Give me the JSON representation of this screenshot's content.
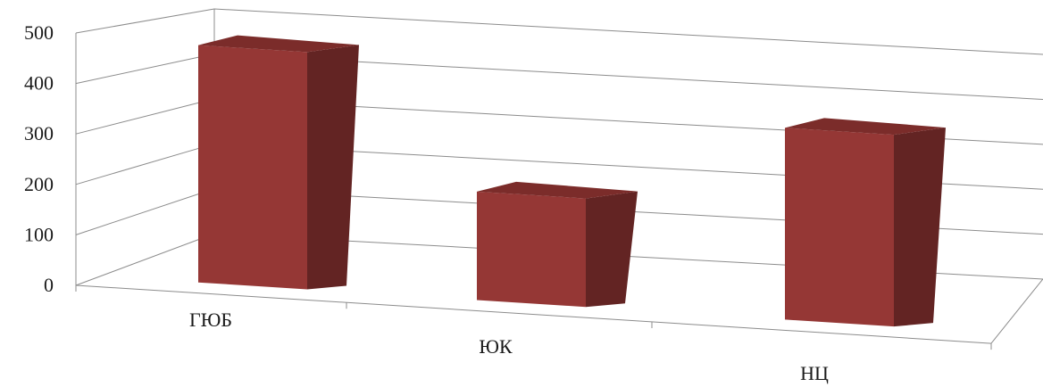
{
  "chart_data": {
    "type": "bar",
    "style": "3d-column",
    "title": "",
    "xlabel": "",
    "ylabel": "",
    "categories": [
      "ГЮБ",
      "ЮК",
      "НЦ"
    ],
    "values": [
      470,
      215,
      380
    ],
    "ylim": [
      0,
      500
    ],
    "yticks": [
      "0",
      "100",
      "200",
      "300",
      "400",
      "500"
    ],
    "grid": true,
    "legend": "none",
    "colors": {
      "bar_front": "#953735",
      "bar_top": "#7b2c2a",
      "bar_side": "#632423",
      "grid": "#8c8c8c"
    }
  }
}
